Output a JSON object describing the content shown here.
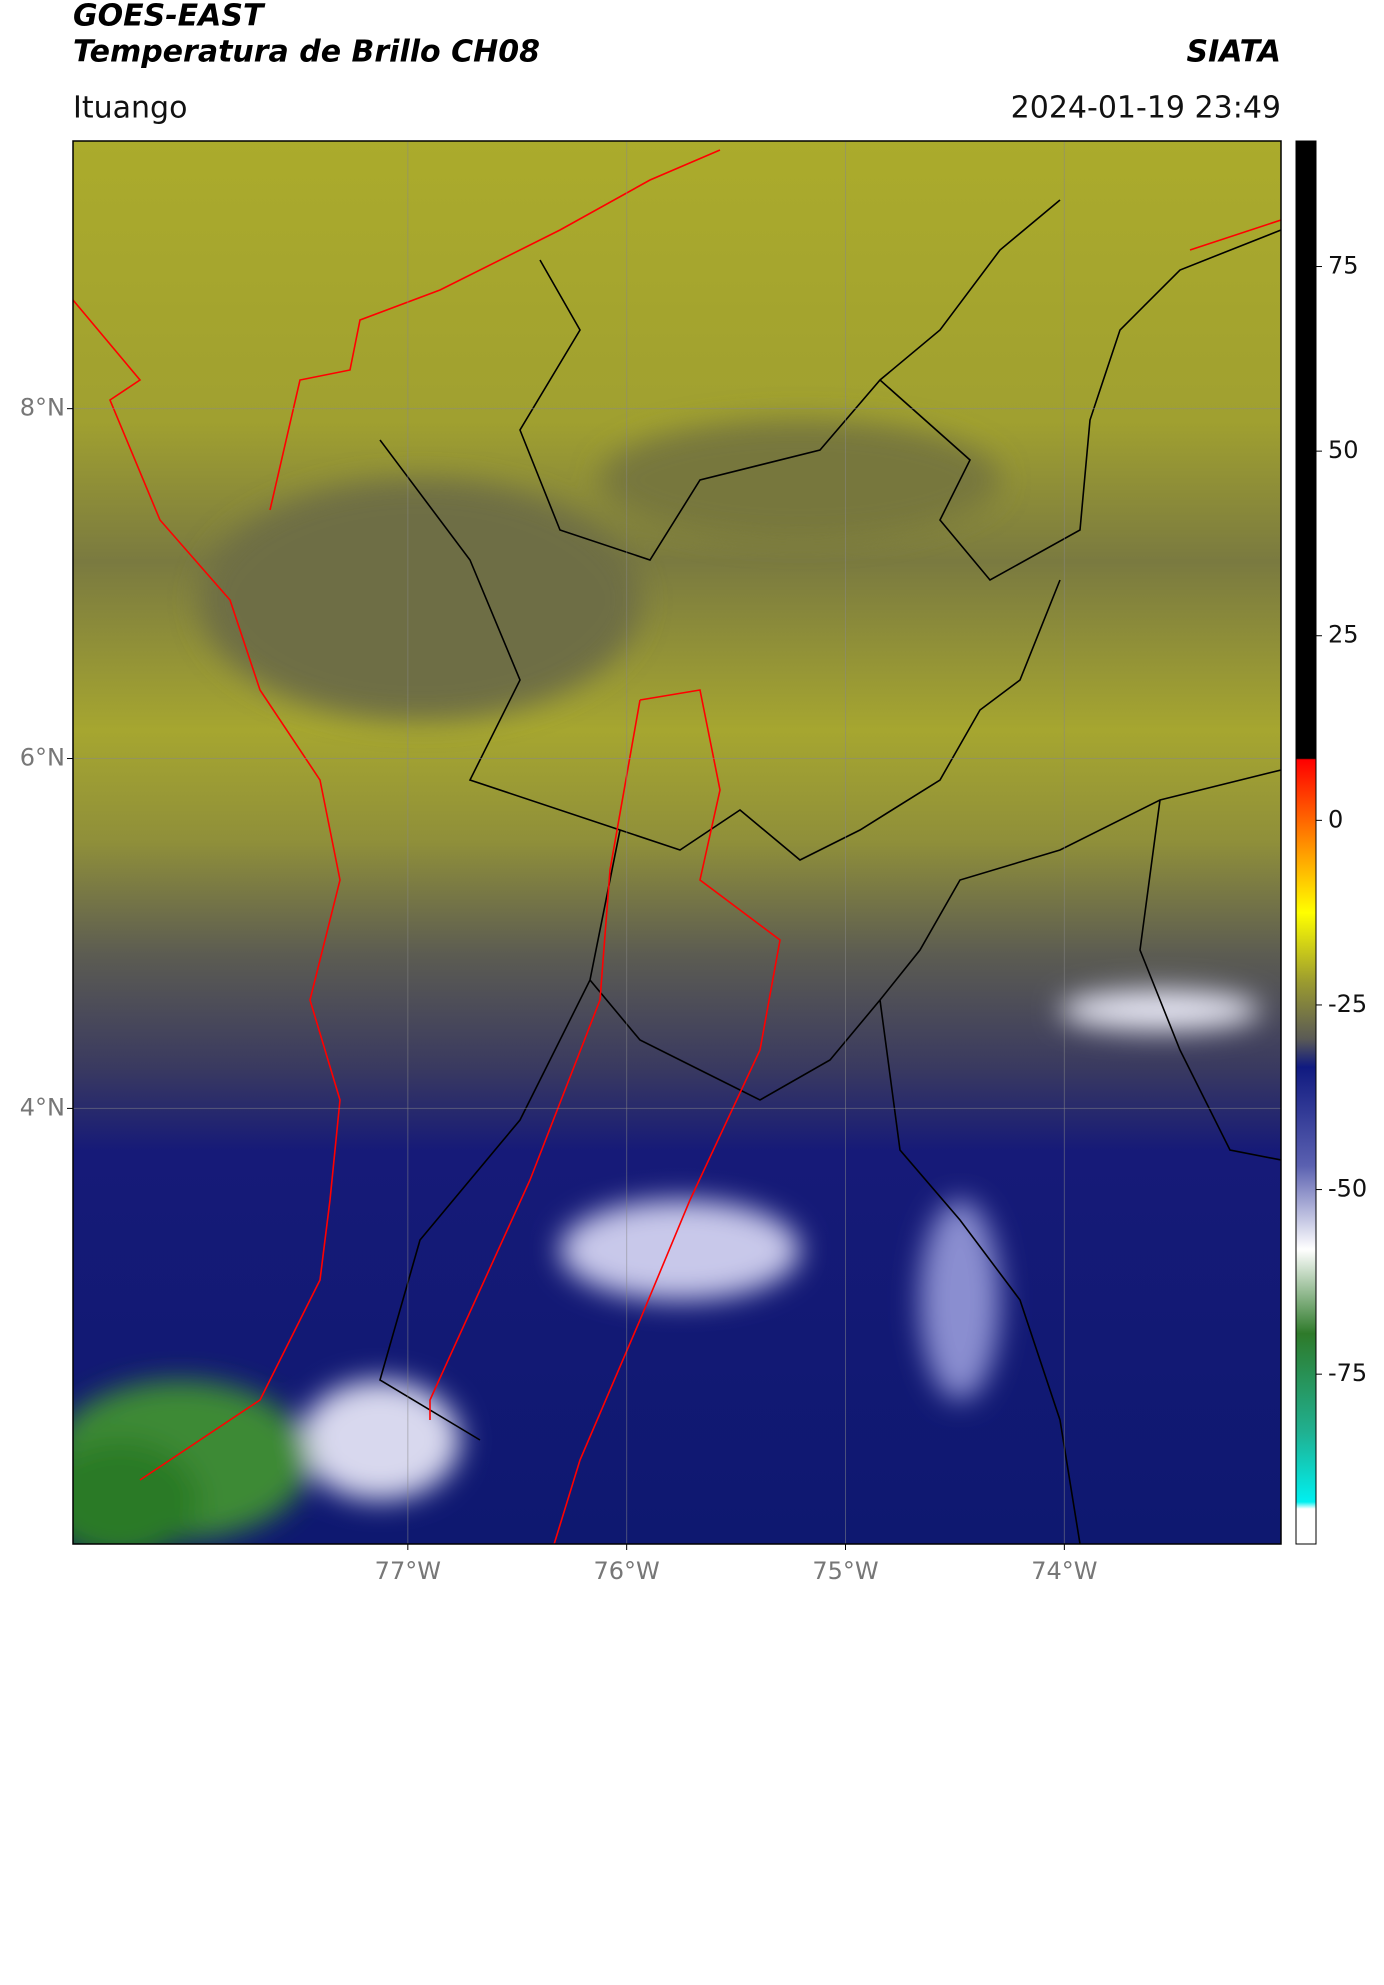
{
  "header": {
    "title": "GOES-EAST",
    "subtitle": "Temperatura de Brillo CH08",
    "brand": "SIATA",
    "location": "Ituango",
    "timestamp": "2024-01-19 23:49"
  },
  "map": {
    "xlim": [
      -78.53,
      -73.01
    ],
    "ylim": [
      1.51,
      9.53
    ],
    "xticks": [
      {
        "value": -77,
        "label": "77°W"
      },
      {
        "value": -76,
        "label": "76°W"
      },
      {
        "value": -75,
        "label": "75°W"
      },
      {
        "value": -74,
        "label": "74°W"
      }
    ],
    "yticks": [
      {
        "value": 8,
        "label": "8°N"
      },
      {
        "value": 6,
        "label": "6°N"
      },
      {
        "value": 4,
        "label": "4°N"
      }
    ],
    "grid": true
  },
  "colorbar": {
    "lim": [
      -98,
      92
    ],
    "ticks": [
      75,
      50,
      25,
      0,
      -25,
      -50,
      -75
    ]
  }
}
